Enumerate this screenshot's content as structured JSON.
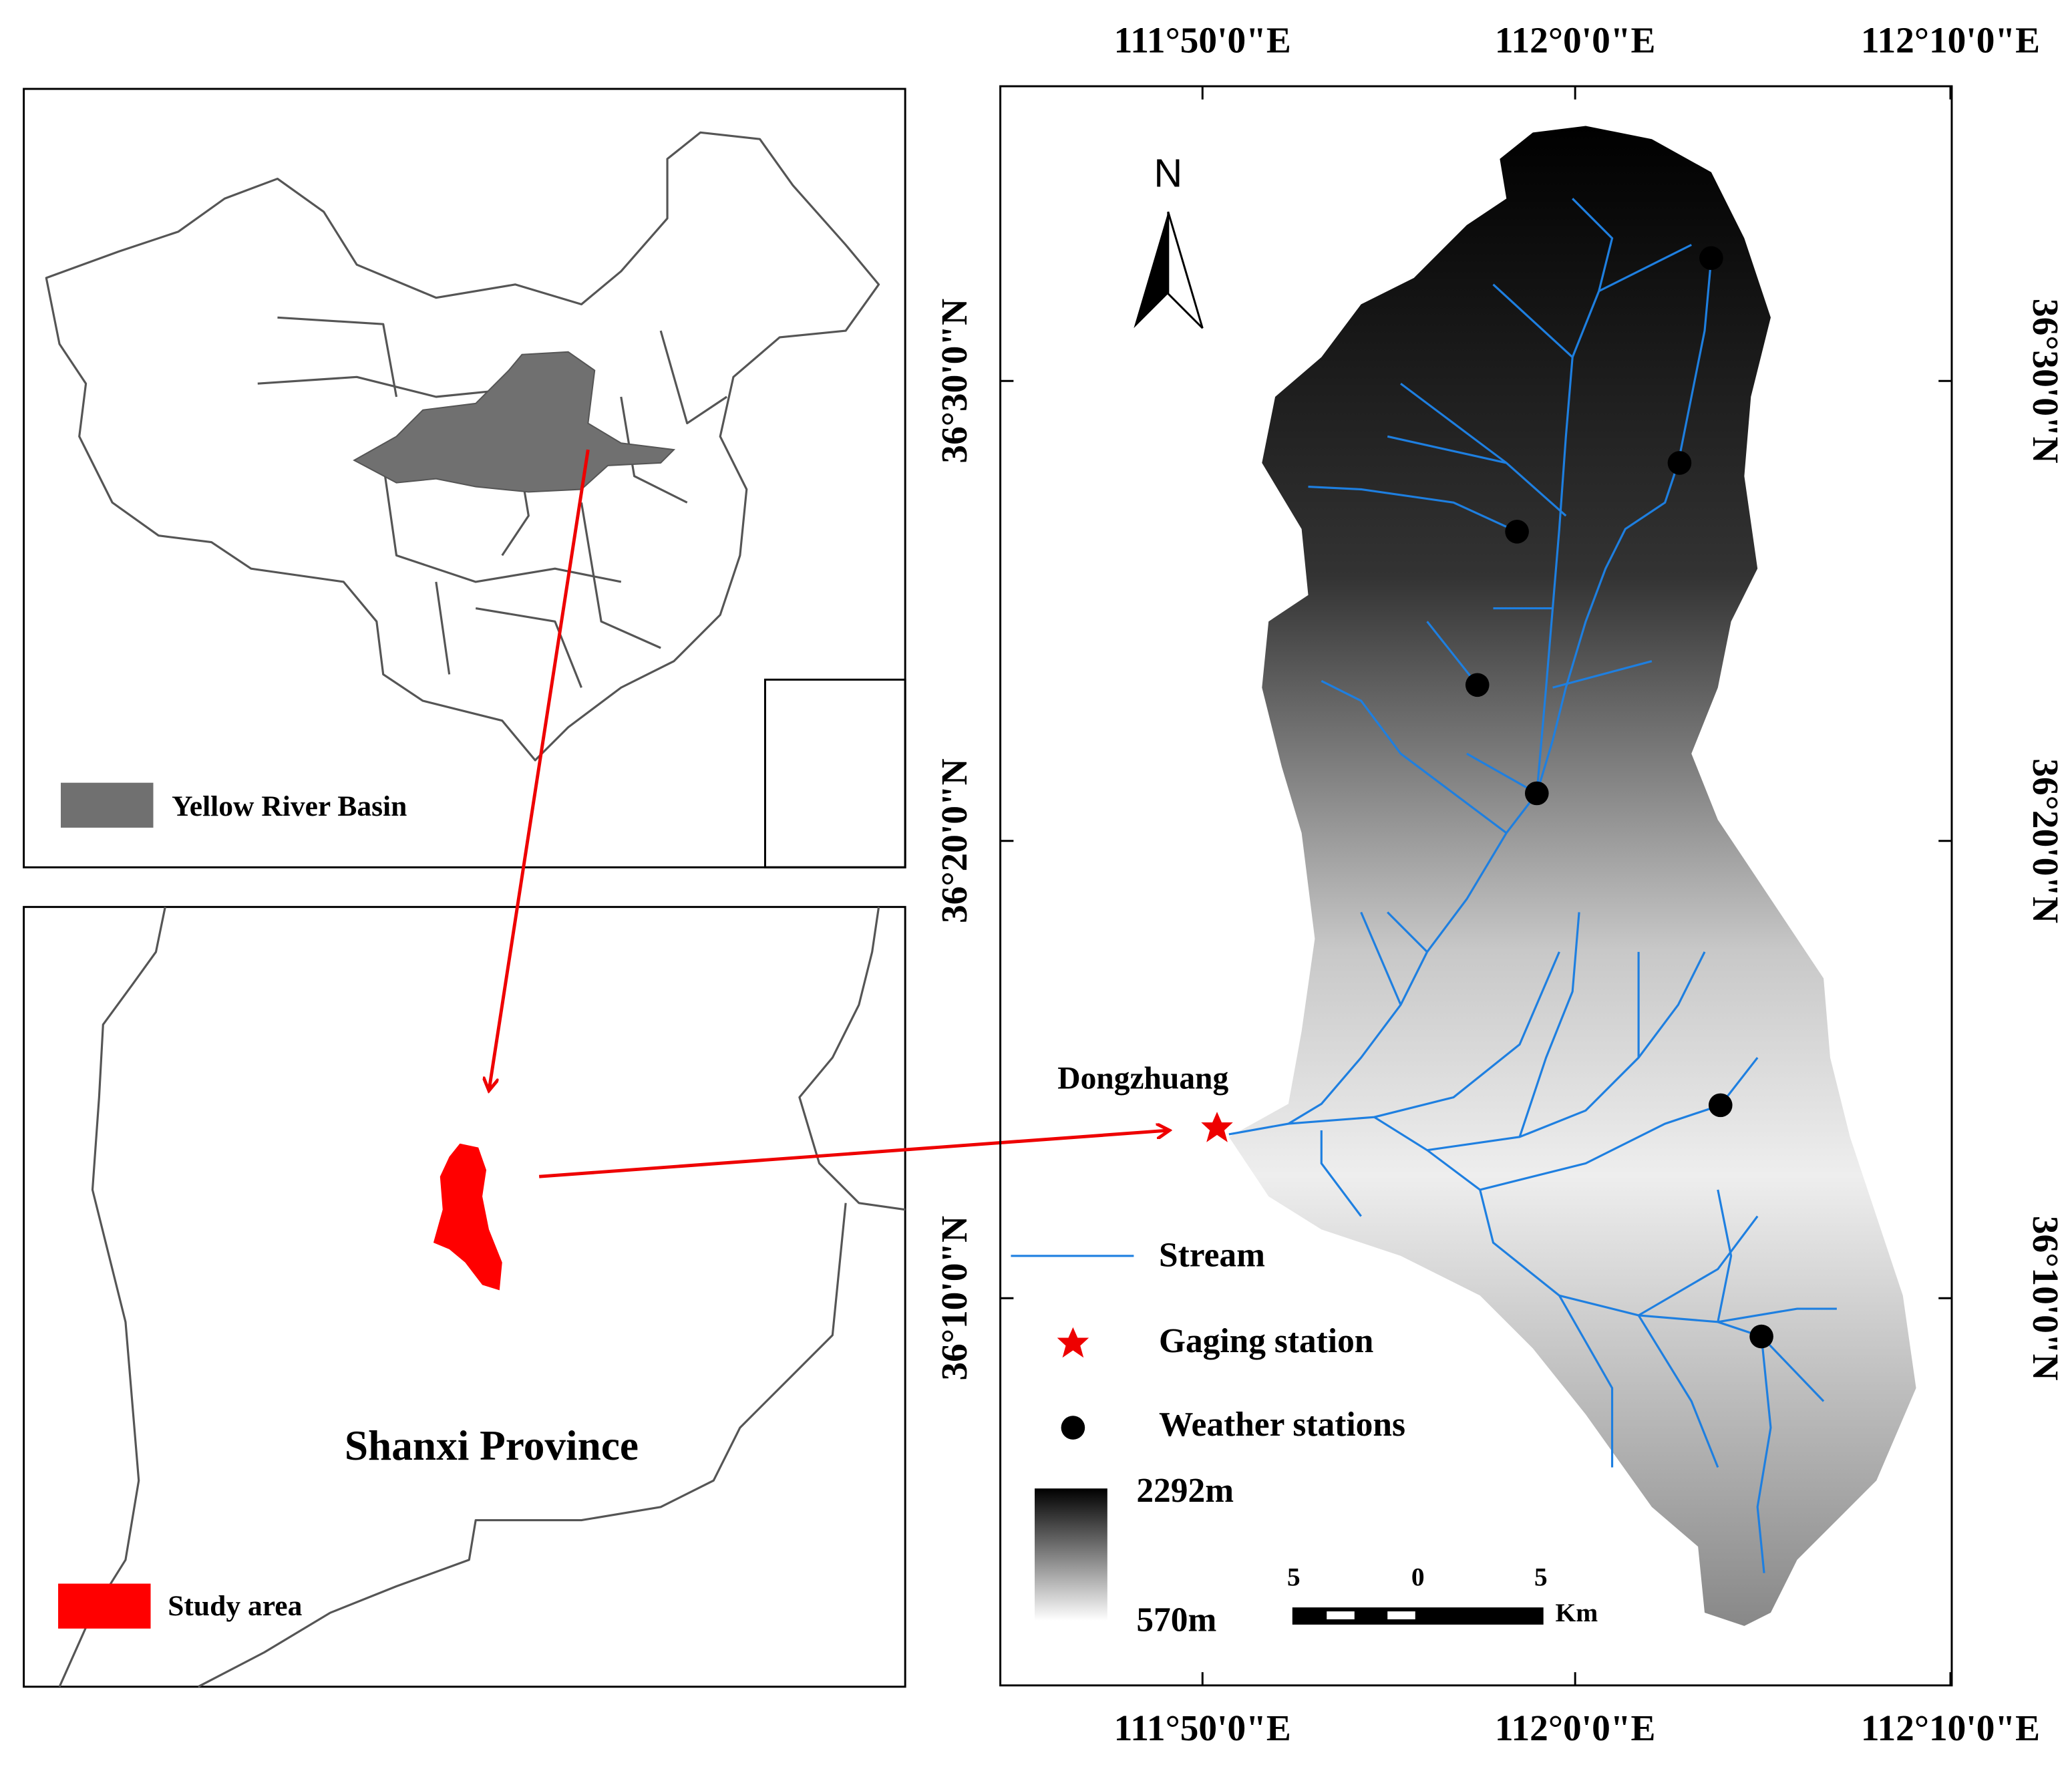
{
  "overview_map": {
    "legend": "Yellow River Basin"
  },
  "province_map": {
    "label": "Shanxi Province",
    "legend": "Study area"
  },
  "watershed_map": {
    "lon_labels_top": [
      "111°50'0\"E",
      "112°0'0\"E",
      "112°10'0\"E"
    ],
    "lon_labels_bottom": [
      "111°50'0\"E",
      "112°0'0\"E",
      "112°10'0\"E"
    ],
    "lat_labels_left": [
      "36°30'0\"N",
      "36°20'0\"N",
      "36°10'0\"N"
    ],
    "lat_labels_right": [
      "36°30'0\"N",
      "36°20'0\"N",
      "36°10'0\"N"
    ],
    "north": "N",
    "gauge_label": "Dongzhuang",
    "legend": [
      "Stream",
      "Gaging station",
      "Weather stations"
    ],
    "elevation_max": "2292m",
    "elevation_min": "570m",
    "scale_labels": [
      "5",
      "0",
      "5"
    ],
    "scale_unit": "Km"
  }
}
